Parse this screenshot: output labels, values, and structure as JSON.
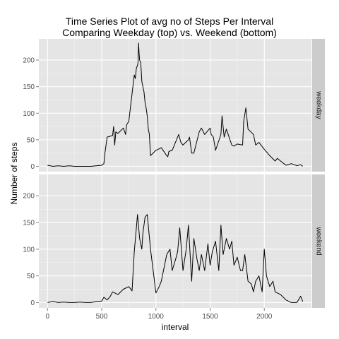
{
  "chart_data": {
    "type": "line",
    "title": "Time Series Plot of avg no of Steps Per Interval",
    "subtitle": "Comparing Weekday (top) vs. Weekend (bottom)",
    "xlabel": "interval",
    "ylabel": "Number of steps",
    "xlim": [
      -80,
      2435
    ],
    "ylim": [
      -10,
      240
    ],
    "x_ticks": [
      0,
      500,
      1000,
      1500,
      2000
    ],
    "x_tick_labels": [
      "0",
      "500",
      "1000",
      "1500",
      "2000"
    ],
    "y_ticks": [
      0,
      50,
      100,
      150,
      200
    ],
    "y_tick_labels": [
      "0",
      "50",
      "100",
      "150",
      "200"
    ],
    "grid": true,
    "panels": [
      {
        "strip_label": "weekday",
        "x": [
          0,
          50,
          100,
          150,
          200,
          250,
          300,
          350,
          400,
          450,
          500,
          520,
          530,
          550,
          600,
          610,
          620,
          630,
          650,
          700,
          720,
          730,
          750,
          800,
          810,
          820,
          830,
          835,
          840,
          845,
          850,
          860,
          870,
          880,
          890,
          900,
          910,
          920,
          930,
          940,
          950,
          1000,
          1050,
          1100,
          1110,
          1120,
          1150,
          1200,
          1210,
          1230,
          1250,
          1300,
          1310,
          1330,
          1350,
          1400,
          1420,
          1450,
          1500,
          1510,
          1530,
          1550,
          1600,
          1610,
          1630,
          1650,
          1700,
          1720,
          1750,
          1800,
          1810,
          1830,
          1850,
          1900,
          1920,
          1950,
          2000,
          2030,
          2050,
          2100,
          2120,
          2150,
          2200,
          2250,
          2300,
          2335,
          2355
        ],
        "y": [
          2,
          0,
          1,
          0,
          1,
          0,
          0,
          0,
          0,
          1,
          2,
          5,
          25,
          55,
          58,
          75,
          40,
          65,
          62,
          72,
          60,
          78,
          85,
          172,
          165,
          185,
          190,
          195,
          232,
          212,
          200,
          195,
          160,
          150,
          140,
          120,
          110,
          95,
          70,
          60,
          20,
          30,
          35,
          20,
          18,
          28,
          30,
          55,
          60,
          45,
          40,
          50,
          55,
          25,
          25,
          65,
          72,
          60,
          72,
          60,
          55,
          30,
          60,
          95,
          55,
          70,
          40,
          38,
          42,
          40,
          85,
          110,
          70,
          60,
          40,
          45,
          32,
          25,
          20,
          10,
          15,
          10,
          2,
          5,
          1,
          3,
          0
        ]
      },
      {
        "strip_label": "weekend",
        "x": [
          0,
          50,
          100,
          150,
          200,
          250,
          300,
          350,
          400,
          450,
          500,
          520,
          550,
          580,
          600,
          650,
          700,
          750,
          780,
          800,
          820,
          830,
          850,
          870,
          880,
          900,
          920,
          950,
          1000,
          1030,
          1050,
          1100,
          1130,
          1150,
          1180,
          1200,
          1220,
          1250,
          1280,
          1300,
          1330,
          1350,
          1380,
          1400,
          1420,
          1450,
          1480,
          1500,
          1520,
          1550,
          1580,
          1600,
          1620,
          1650,
          1680,
          1700,
          1720,
          1750,
          1780,
          1800,
          1820,
          1850,
          1880,
          1900,
          1920,
          1950,
          1980,
          2000,
          2020,
          2050,
          2080,
          2100,
          2150,
          2200,
          2250,
          2300,
          2315,
          2335,
          2355
        ],
        "y": [
          0,
          2,
          0,
          1,
          0,
          0,
          1,
          0,
          0,
          2,
          3,
          10,
          5,
          12,
          20,
          15,
          25,
          30,
          22,
          95,
          140,
          165,
          120,
          100,
          130,
          160,
          165,
          100,
          18,
          30,
          40,
          90,
          100,
          60,
          80,
          95,
          140,
          60,
          100,
          145,
          40,
          120,
          80,
          60,
          90,
          60,
          110,
          70,
          95,
          115,
          60,
          145,
          90,
          120,
          100,
          115,
          70,
          85,
          60,
          60,
          90,
          40,
          35,
          20,
          40,
          50,
          20,
          100,
          50,
          30,
          40,
          20,
          15,
          5,
          0,
          0,
          5,
          12,
          2
        ]
      }
    ]
  }
}
